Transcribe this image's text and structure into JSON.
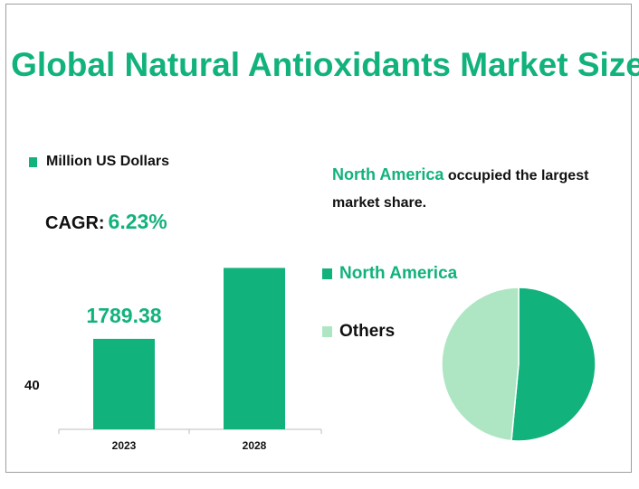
{
  "title": "Global Natural Antioxidants Market Size",
  "legend_unit": "Million US Dollars",
  "cagr_label": "CAGR:",
  "cagr_value": "6.23%",
  "note_highlight": "North America",
  "note_text": "occupied the largest market share.",
  "pie_legend": [
    "North America",
    "Others"
  ],
  "colors": {
    "primary": "#12b27c",
    "secondary": "#aee6c3"
  },
  "chart_data": [
    {
      "type": "bar",
      "categories": [
        "2023",
        "2028"
      ],
      "values": [
        1789.38,
        3192.1
      ],
      "data_labels": [
        "1789.38",
        ""
      ],
      "y_label_text": "40",
      "ylim": [
        0,
        4200
      ]
    },
    {
      "type": "pie",
      "labels": [
        "North America",
        "Others"
      ],
      "values": [
        51.5,
        48.5
      ]
    }
  ]
}
